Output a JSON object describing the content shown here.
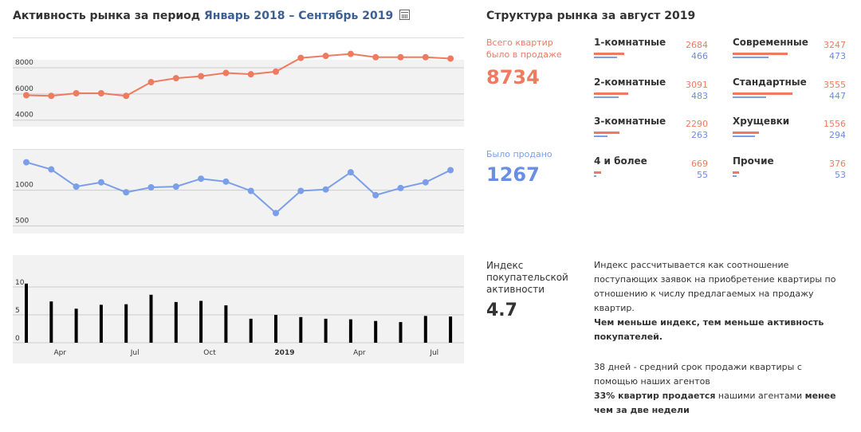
{
  "header": {
    "title_prefix": "Активность рынка за период",
    "range_start": "Январь 2018",
    "range_sep": " – ",
    "range_end": "Сентябрь 2019",
    "calendar_icon": "calendar-icon"
  },
  "structure": {
    "title": "Структура рынка за август 2019",
    "total_label_line1": "Всего квартир",
    "total_label_line2": "было в продаже",
    "total_value": "8734",
    "sold_label": "Было продано",
    "sold_value": "1267",
    "colors": {
      "offered": "#ee7b5f",
      "sold": "#7a9ee8"
    },
    "rooms": [
      {
        "name": "1-комнатные",
        "offered": 2684,
        "sold": 466
      },
      {
        "name": "2-комнатные",
        "offered": 3091,
        "sold": 483
      },
      {
        "name": "3-комнатные",
        "offered": 2290,
        "sold": 263
      },
      {
        "name": "4 и более",
        "offered": 669,
        "sold": 55
      }
    ],
    "types": [
      {
        "name": "Современные",
        "offered": 3247,
        "sold": 473
      },
      {
        "name": "Стандартные",
        "offered": 3555,
        "sold": 447
      },
      {
        "name": "Хрущевки",
        "offered": 1556,
        "sold": 294
      },
      {
        "name": "Прочие",
        "offered": 376,
        "sold": 53
      }
    ]
  },
  "index": {
    "label_line1": "Индекс",
    "label_line2": "покупательской",
    "label_line3": "активности",
    "value": "4.7",
    "desc_line1": "Индекс рассчитывается как соотношение",
    "desc_line2": "поступающих заявок на приобретение квартиры по",
    "desc_line3": "отношению к числу предлагаемых на продажу",
    "desc_line4": "квартир.",
    "desc_bold_line1": "Чем меньше индекс, тем меньше активность",
    "desc_bold_line2": "покупателей.",
    "agents_line1": "38 дней - средний срок продажи квартиры с",
    "agents_line2": "помощью наших агентов",
    "agents_bold1": "33% квартир продается",
    "agents_normal": " нашими агентами ",
    "agents_bold2": "менее",
    "agents_bold3": "чем за две недели"
  },
  "chart_data": [
    {
      "type": "line",
      "series": [
        {
          "values": [
            5900,
            5850,
            6050,
            6050,
            5850,
            6900,
            7200,
            7350,
            7600,
            7500,
            7700,
            8750,
            8900,
            9050,
            8800,
            8800,
            8800,
            8700
          ]
        }
      ],
      "x": [
        "2018-01",
        "2018-02",
        "2018-03",
        "2018-04",
        "2018-05",
        "2018-06",
        "2018-07",
        "2018-08",
        "2018-09",
        "2018-10",
        "2018-11",
        "2018-12",
        "2019-01",
        "2019-02",
        "2019-03",
        "2019-04",
        "2019-05",
        "2019-06"
      ],
      "yticks": [
        4000,
        6000,
        8000
      ],
      "ylim": [
        3800,
        9700
      ],
      "color": "#ee7b5f",
      "grid": true
    },
    {
      "type": "line",
      "series": [
        {
          "values": [
            1390,
            1290,
            1050,
            1110,
            970,
            1040,
            1050,
            1160,
            1120,
            990,
            680,
            990,
            1010,
            1250,
            930,
            1030,
            1110,
            1280
          ]
        }
      ],
      "x": [
        "2018-01",
        "2018-02",
        "2018-03",
        "2018-04",
        "2018-05",
        "2018-06",
        "2018-07",
        "2018-08",
        "2018-09",
        "2018-10",
        "2018-11",
        "2018-12",
        "2019-01",
        "2019-02",
        "2019-03",
        "2019-04",
        "2019-05",
        "2019-06"
      ],
      "yticks": [
        500,
        1000
      ],
      "ylim": [
        450,
        1530
      ],
      "color": "#7a9ee8",
      "grid": true
    },
    {
      "type": "bar",
      "values": [
        10.6,
        7.4,
        6.1,
        6.8,
        6.9,
        8.6,
        7.3,
        7.5,
        6.7,
        4.3,
        5,
        4.6,
        4.3,
        4.2,
        3.9,
        3.7,
        4.8,
        4.7
      ],
      "x": [
        "2018-01",
        "2018-02",
        "2018-03",
        "2018-04",
        "2018-05",
        "2018-06",
        "2018-07",
        "2018-08",
        "2018-09",
        "2018-10",
        "2018-11",
        "2018-12",
        "2019-01",
        "2019-02",
        "2019-03",
        "2019-04",
        "2019-05",
        "2019-06"
      ],
      "yticks": [
        0,
        5,
        10
      ],
      "ylim": [
        0,
        13
      ],
      "xtick_labels": [
        {
          "label": "Apr",
          "at": 1,
          "bold": false
        },
        {
          "label": "Jul",
          "at": 4,
          "bold": false
        },
        {
          "label": "Oct",
          "at": 7,
          "bold": false
        },
        {
          "label": "2019",
          "at": 10,
          "bold": true
        },
        {
          "label": "Apr",
          "at": 13,
          "bold": false
        },
        {
          "label": "Jul",
          "at": 16,
          "bold": false
        }
      ],
      "color": "#000000",
      "grid": true
    }
  ]
}
